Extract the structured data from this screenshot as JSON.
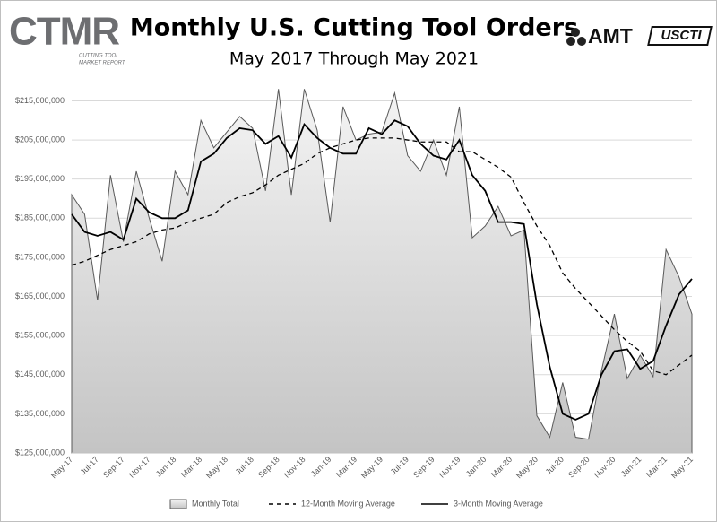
{
  "logo_left": {
    "name": "CTMR",
    "tagline": [
      "CUTTING TOOL",
      "MARKET REPORT"
    ]
  },
  "logo_right": [
    "AMT",
    "USCTI"
  ],
  "chart_data": {
    "type": "area_line",
    "title": "Monthly U.S. Cutting Tool Orders",
    "subtitle": "May 2017 Through May 2021",
    "categories": [
      "May-17",
      null,
      "Jul-17",
      null,
      "Sep-17",
      null,
      "Nov-17",
      null,
      "Jan-18",
      null,
      "Mar-18",
      null,
      "May-18",
      null,
      "Jul-18",
      null,
      "Sep-18",
      null,
      "Nov-18",
      null,
      "Jan-19",
      null,
      "Mar-19",
      null,
      "May-19",
      null,
      "Jul-19",
      null,
      "Sep-19",
      null,
      "Nov-19",
      null,
      "Jan-20",
      null,
      "Mar-20",
      null,
      "May-20",
      null,
      "Jul-20",
      null,
      "Sep-20",
      null,
      "Nov-20",
      null,
      "Jan-21",
      null,
      "Mar-21",
      null,
      "May-21"
    ],
    "series": [
      {
        "name": "Monthly Total",
        "kind": "area",
        "color": "#595959",
        "fill": [
          "#f4f4f4",
          "#c4c4c4"
        ],
        "values": [
          191000000,
          186000000,
          164000000,
          196000000,
          179000000,
          197000000,
          185000000,
          174000000,
          197000000,
          191000000,
          210000000,
          203000000,
          207000000,
          211000000,
          208000000,
          192000000,
          218000000,
          191000000,
          218000000,
          207500000,
          184000000,
          213500000,
          205000000,
          206500000,
          207000000,
          217000000,
          201000000,
          197000000,
          205000000,
          196000000,
          213500000,
          180000000,
          183000000,
          188000000,
          180500000,
          182000000,
          134500000,
          129000000,
          143000000,
          129000000,
          128500000,
          146000000,
          160500000,
          144000000,
          150000000,
          144500000,
          177000000,
          170000000,
          160500000
        ]
      },
      {
        "name": "12-Month Moving Average",
        "kind": "line",
        "style": "dashed",
        "color": "#000000",
        "values": [
          173000000,
          174000000,
          175500000,
          177000000,
          178000000,
          179000000,
          181000000,
          182000000,
          182500000,
          184000000,
          185000000,
          186000000,
          189000000,
          190500000,
          191500000,
          193500000,
          196000000,
          197500000,
          199000000,
          201500000,
          203000000,
          204000000,
          205000000,
          205500000,
          205500000,
          205500000,
          205000000,
          204500000,
          204500000,
          204500000,
          202000000,
          202000000,
          200000000,
          198000000,
          195500000,
          189000000,
          183000000,
          178000000,
          171000000,
          167000000,
          163500000,
          160000000,
          156500000,
          153500000,
          151000000,
          146000000,
          145000000,
          147500000,
          150000000
        ]
      },
      {
        "name": "3-Month Moving Average",
        "kind": "line",
        "style": "solid",
        "color": "#000000",
        "values": [
          186000000,
          181500000,
          180500000,
          181500000,
          179500000,
          190000000,
          186500000,
          185000000,
          185000000,
          187000000,
          199500000,
          201500000,
          205500000,
          208000000,
          207500000,
          204000000,
          206000000,
          200500000,
          209000000,
          205500000,
          203000000,
          201500000,
          201500000,
          208000000,
          206500000,
          210000000,
          208500000,
          204000000,
          201000000,
          200000000,
          205000000,
          196000000,
          192000000,
          184000000,
          184000000,
          183500000,
          163000000,
          147000000,
          135000000,
          133500000,
          135000000,
          145000000,
          151000000,
          151500000,
          146500000,
          148500000,
          157500000,
          165500000,
          169500000
        ]
      }
    ],
    "ylim": [
      125000000,
      219000000
    ],
    "yticks": [
      {
        "value": 125000000,
        "label": "$125,000,000"
      },
      {
        "value": 135000000,
        "label": "$135,000,000"
      },
      {
        "value": 145000000,
        "label": "$145,000,000"
      },
      {
        "value": 155000000,
        "label": "$155,000,000"
      },
      {
        "value": 165000000,
        "label": "$165,000,000"
      },
      {
        "value": 175000000,
        "label": "$175,000,000"
      },
      {
        "value": 185000000,
        "label": "$185,000,000"
      },
      {
        "value": 195000000,
        "label": "$195,000,000"
      },
      {
        "value": 205000000,
        "label": "$205,000,000"
      },
      {
        "value": 215000000,
        "label": "$215,000,000"
      }
    ],
    "grid": true,
    "legend": "bottom"
  }
}
